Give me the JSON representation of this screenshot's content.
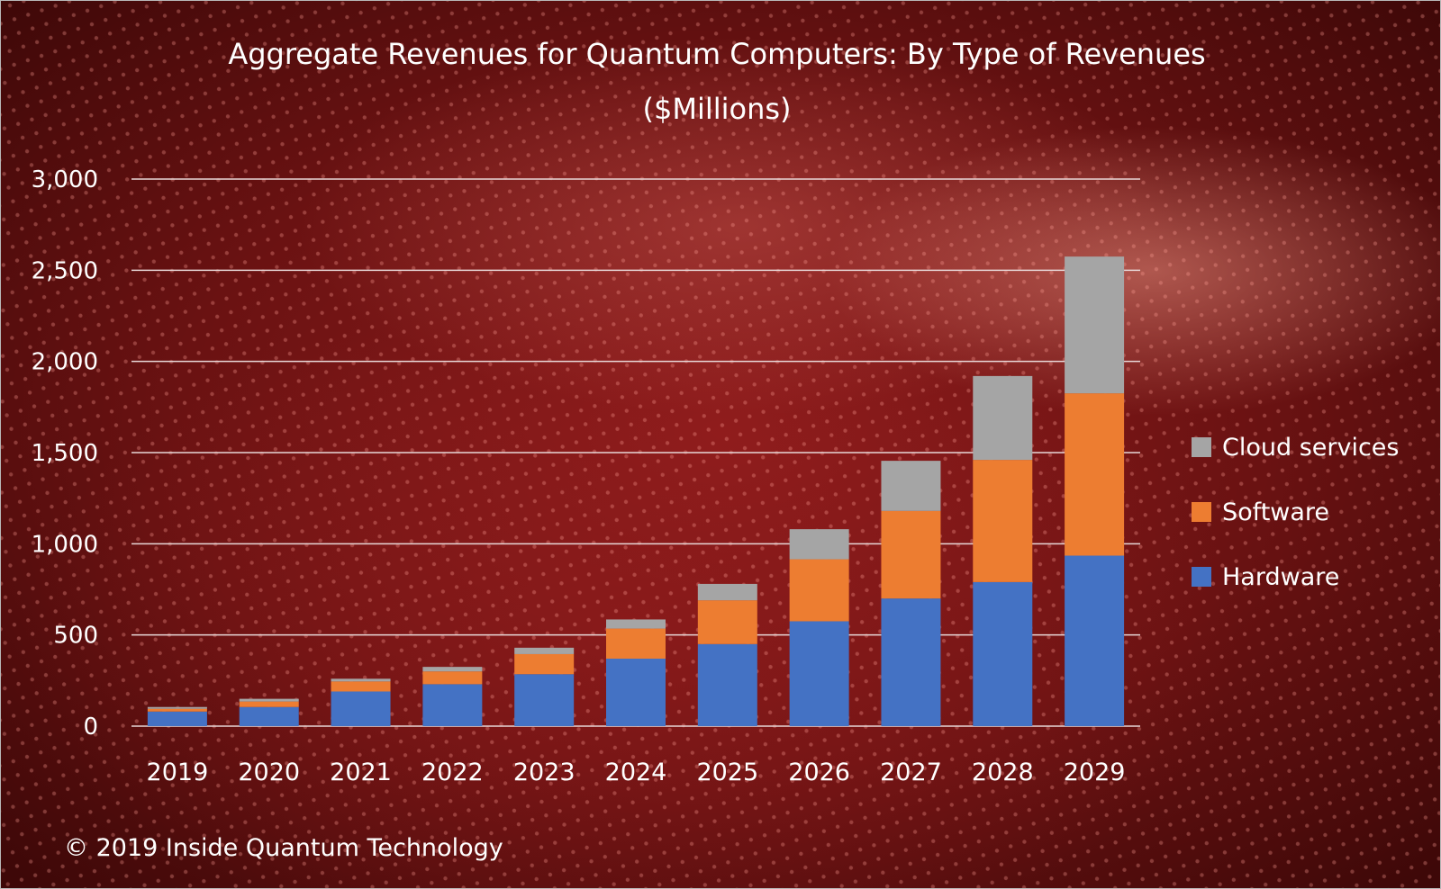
{
  "chart_data": {
    "type": "bar",
    "stacked": true,
    "title": "Aggregate Revenues for Quantum Computers:  By Type of Revenues",
    "subtitle": "($Millions)",
    "categories": [
      "2019",
      "2020",
      "2021",
      "2022",
      "2023",
      "2024",
      "2025",
      "2026",
      "2027",
      "2028",
      "2029"
    ],
    "series": [
      {
        "name": "Hardware",
        "color": "#4472c4",
        "values": [
          80,
          105,
          190,
          230,
          285,
          370,
          450,
          575,
          700,
          790,
          935
        ]
      },
      {
        "name": "Software",
        "color": "#ed7d31",
        "values": [
          15,
          30,
          55,
          70,
          110,
          165,
          240,
          340,
          480,
          670,
          890
        ]
      },
      {
        "name": "Cloud services",
        "color": "#a5a5a5",
        "values": [
          10,
          15,
          15,
          25,
          35,
          50,
          90,
          165,
          275,
          460,
          750
        ]
      }
    ],
    "ylim": [
      0,
      3000
    ],
    "yticks": [
      0,
      500,
      1000,
      1500,
      2000,
      2500,
      3000
    ],
    "ytick_labels": [
      "0",
      "500",
      "1,000",
      "1,500",
      "2,000",
      "2,500",
      "3,000"
    ],
    "grid": true,
    "legend_position": "right",
    "legend_order": [
      "Cloud services",
      "Software",
      "Hardware"
    ]
  },
  "footer": {
    "copyright": "© 2019 Inside  Quantum Technology"
  }
}
